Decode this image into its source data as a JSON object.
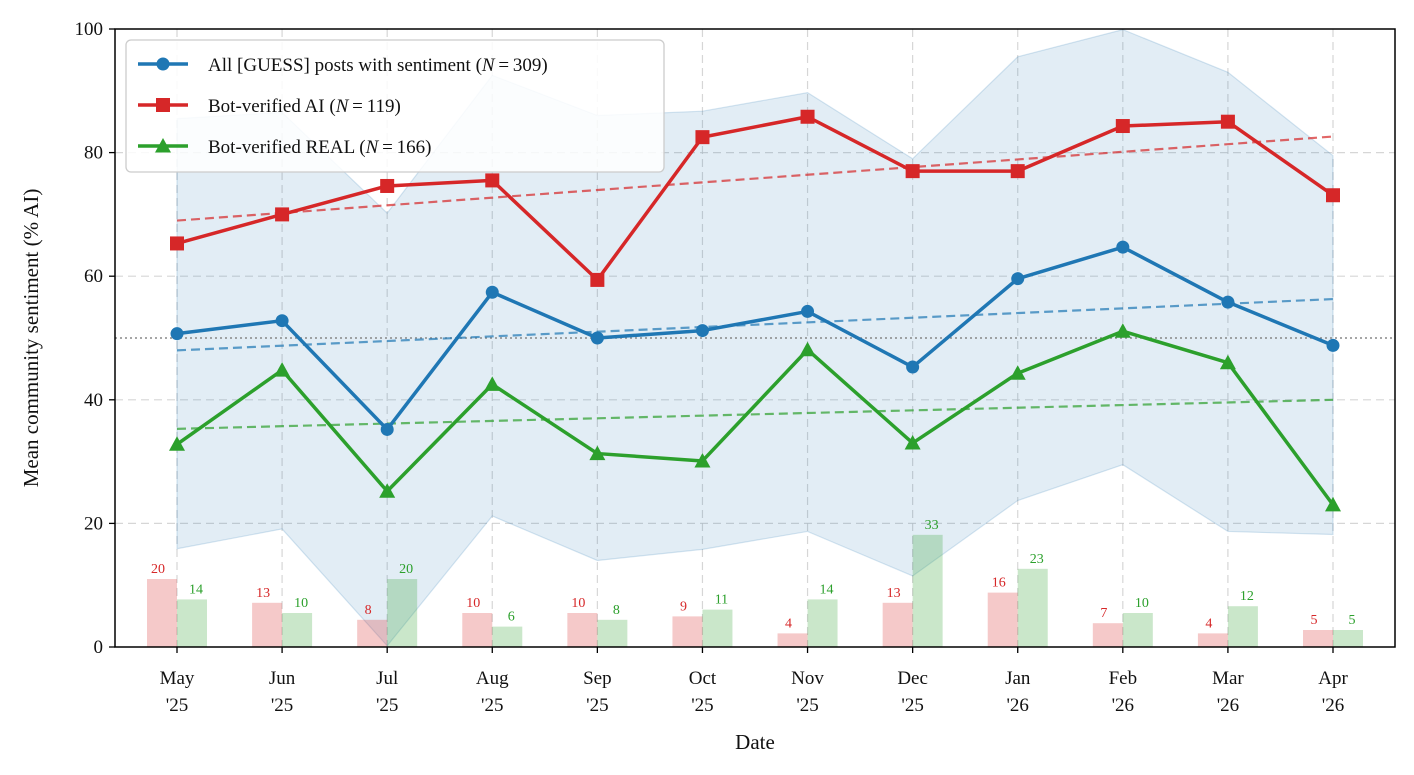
{
  "chart_data": {
    "type": "line",
    "xlabel": "Date",
    "ylabel": "Mean community sentiment (% AI)",
    "ylim": [
      0,
      100
    ],
    "yticks": [
      0,
      20,
      40,
      60,
      80,
      100
    ],
    "grid": true,
    "legend_position": "top-left",
    "reference_line": 50,
    "categories": [
      {
        "line1": "May",
        "line2": "'25"
      },
      {
        "line1": "Jun",
        "line2": "'25"
      },
      {
        "line1": "Jul",
        "line2": "'25"
      },
      {
        "line1": "Aug",
        "line2": "'25"
      },
      {
        "line1": "Sep",
        "line2": "'25"
      },
      {
        "line1": "Oct",
        "line2": "'25"
      },
      {
        "line1": "Nov",
        "line2": "'25"
      },
      {
        "line1": "Dec",
        "line2": "'25"
      },
      {
        "line1": "Jan",
        "line2": "'26"
      },
      {
        "line1": "Feb",
        "line2": "'26"
      },
      {
        "line1": "Mar",
        "line2": "'26"
      },
      {
        "line1": "Apr",
        "line2": "'26"
      }
    ],
    "series": [
      {
        "name": "All [GUESS] posts with sentiment",
        "n_label": "309",
        "color": "#1f77b4",
        "marker": "circle",
        "values": [
          50.7,
          52.8,
          35.2,
          57.4,
          50.0,
          51.2,
          54.3,
          45.3,
          59.6,
          64.7,
          55.8,
          48.8
        ],
        "trend": [
          48.0,
          56.3
        ],
        "band_upper": [
          85.5,
          86.5,
          70.2,
          92.5,
          86.0,
          86.7,
          89.7,
          79.0,
          95.5,
          99.9,
          93.0,
          79.5
        ],
        "band_lower": [
          15.9,
          19.1,
          0.2,
          21.2,
          14.0,
          15.8,
          18.7,
          11.5,
          23.7,
          29.5,
          18.7,
          18.2
        ]
      },
      {
        "name": "Bot-verified AI",
        "n_label": "119",
        "color": "#d62728",
        "marker": "square",
        "values": [
          65.3,
          70.0,
          74.6,
          75.5,
          59.4,
          82.5,
          85.8,
          77.0,
          77.0,
          84.3,
          85.0,
          73.1
        ],
        "trend": [
          69.0,
          82.6
        ],
        "counts": [
          20,
          13,
          8,
          10,
          10,
          9,
          4,
          13,
          16,
          7,
          4,
          5
        ]
      },
      {
        "name": "Bot-verified REAL",
        "n_label": "166",
        "color": "#2ca02c",
        "marker": "triangle",
        "values": [
          32.8,
          44.8,
          25.2,
          42.5,
          31.3,
          30.1,
          48.1,
          33.0,
          44.3,
          51.1,
          46.0,
          23.0
        ],
        "trend": [
          35.3,
          40.0
        ],
        "counts": [
          14,
          10,
          20,
          6,
          8,
          11,
          14,
          33,
          23,
          10,
          12,
          5
        ]
      }
    ],
    "count_bar_scale": 0.55
  }
}
